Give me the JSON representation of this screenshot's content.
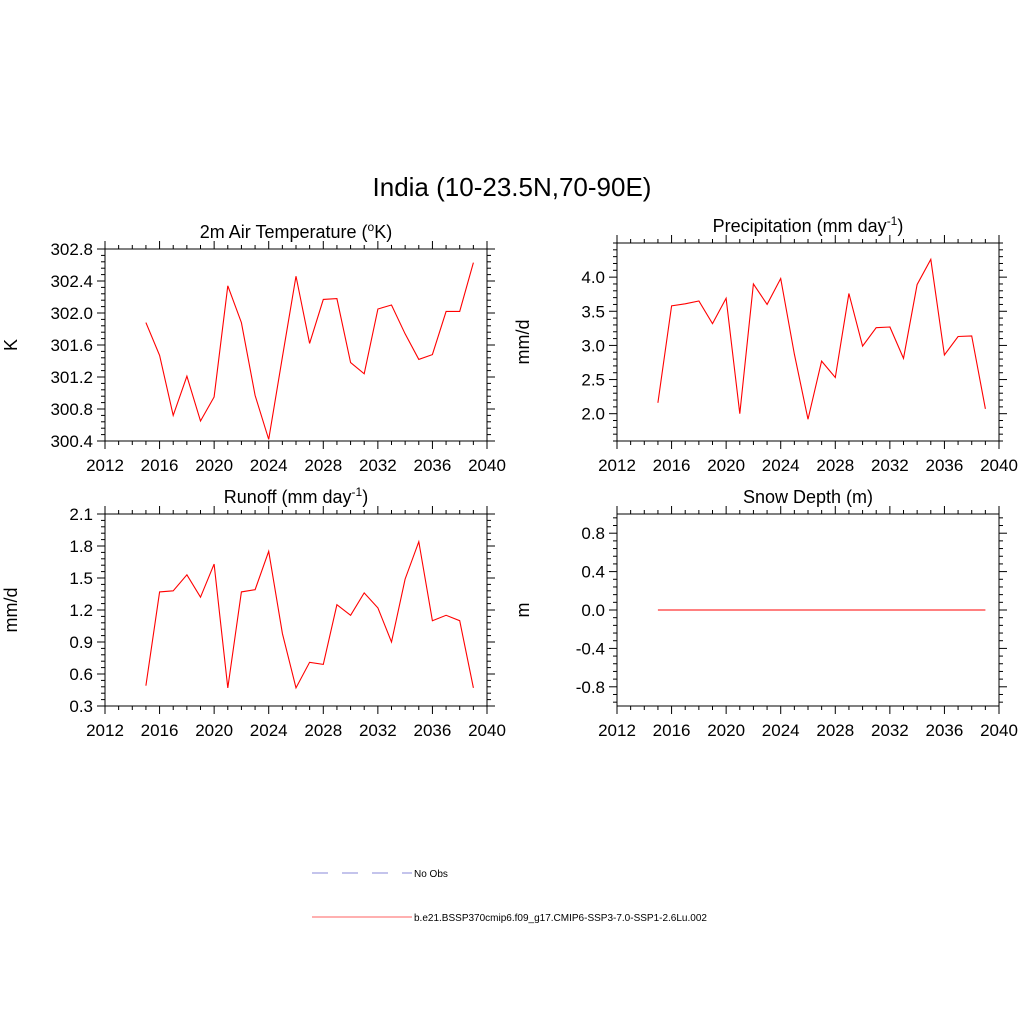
{
  "figure": {
    "title": "India (10-23.5N,70-90E)",
    "line_color": "#ff0000",
    "obs_color": "#a0a0e0"
  },
  "legend": {
    "entries": [
      {
        "label": "No Obs",
        "style": "dashed",
        "color": "#a0a0e0"
      },
      {
        "label": "b.e21.BSSP370cmip6.f09_g17.CMIP6-SSP3-7.0-SSP1-2.6Lu.002",
        "style": "solid",
        "color": "#ff8080"
      }
    ]
  },
  "chart_data": [
    {
      "type": "line",
      "title": "2m Air Temperature (",
      "title_sup": "o",
      "title_tail": "K)",
      "ylabel": "K",
      "xlim": [
        2012,
        2040
      ],
      "ylim": [
        300.4,
        302.8
      ],
      "xticks": [
        2012,
        2016,
        2020,
        2024,
        2028,
        2032,
        2036,
        2040
      ],
      "yticks": [
        "300.4",
        "300.8",
        "301.2",
        "301.6",
        "302.0",
        "302.4",
        "302.8"
      ],
      "x": [
        2015,
        2016,
        2017,
        2018,
        2019,
        2020,
        2021,
        2022,
        2023,
        2024,
        2025,
        2026,
        2027,
        2028,
        2029,
        2030,
        2031,
        2032,
        2033,
        2034,
        2035,
        2036,
        2037,
        2038,
        2039
      ],
      "series": [
        {
          "values": [
            301.88,
            301.47,
            300.72,
            301.21,
            300.65,
            300.95,
            302.34,
            301.88,
            300.97,
            300.42,
            301.45,
            302.46,
            301.62,
            302.17,
            302.18,
            301.38,
            301.24,
            302.05,
            302.1,
            301.74,
            301.42,
            301.48,
            302.02,
            302.02,
            302.63
          ]
        }
      ]
    },
    {
      "type": "line",
      "title": "Precipitation (mm day",
      "title_sup": "-1",
      "title_tail": ")",
      "ylabel": "mm/d",
      "xlim": [
        2012,
        2040
      ],
      "ylim": [
        1.6,
        4.5
      ],
      "xticks": [
        2012,
        2016,
        2020,
        2024,
        2028,
        2032,
        2036,
        2040
      ],
      "yticks": [
        "2.0",
        "2.5",
        "3.0",
        "3.5",
        "4.0"
      ],
      "x": [
        2015,
        2016,
        2017,
        2018,
        2019,
        2020,
        2021,
        2022,
        2023,
        2024,
        2025,
        2026,
        2027,
        2028,
        2029,
        2030,
        2031,
        2032,
        2033,
        2034,
        2035,
        2036,
        2037,
        2038,
        2039
      ],
      "series": [
        {
          "values": [
            2.16,
            3.58,
            3.61,
            3.65,
            3.32,
            3.69,
            2.0,
            3.9,
            3.6,
            3.98,
            2.87,
            1.92,
            2.77,
            2.53,
            3.76,
            2.99,
            3.26,
            3.27,
            2.81,
            3.89,
            4.26,
            2.86,
            3.13,
            3.14,
            2.07
          ]
        }
      ]
    },
    {
      "type": "line",
      "title": "Runoff (mm day",
      "title_sup": "-1",
      "title_tail": ")",
      "ylabel": "mm/d",
      "xlim": [
        2012,
        2040
      ],
      "ylim": [
        0.3,
        2.1
      ],
      "xticks": [
        2012,
        2016,
        2020,
        2024,
        2028,
        2032,
        2036,
        2040
      ],
      "yticks": [
        "0.3",
        "0.6",
        "0.9",
        "1.2",
        "1.5",
        "1.8",
        "2.1"
      ],
      "x": [
        2015,
        2016,
        2017,
        2018,
        2019,
        2020,
        2021,
        2022,
        2023,
        2024,
        2025,
        2026,
        2027,
        2028,
        2029,
        2030,
        2031,
        2032,
        2033,
        2034,
        2035,
        2036,
        2037,
        2038,
        2039
      ],
      "series": [
        {
          "values": [
            0.49,
            1.37,
            1.38,
            1.53,
            1.32,
            1.63,
            0.47,
            1.37,
            1.39,
            1.75,
            0.98,
            0.47,
            0.71,
            0.69,
            1.25,
            1.15,
            1.36,
            1.22,
            0.9,
            1.49,
            1.84,
            1.1,
            1.15,
            1.1,
            0.47
          ]
        }
      ]
    },
    {
      "type": "line",
      "title": "Snow Depth (m)",
      "title_sup": "",
      "title_tail": "",
      "ylabel": "m",
      "xlim": [
        2012,
        2040
      ],
      "ylim": [
        -1.0,
        1.0
      ],
      "xticks": [
        2012,
        2016,
        2020,
        2024,
        2028,
        2032,
        2036,
        2040
      ],
      "yticks": [
        "-0.8",
        "-0.4",
        "0.0",
        "0.4",
        "0.8"
      ],
      "x": [
        2015,
        2016,
        2017,
        2018,
        2019,
        2020,
        2021,
        2022,
        2023,
        2024,
        2025,
        2026,
        2027,
        2028,
        2029,
        2030,
        2031,
        2032,
        2033,
        2034,
        2035,
        2036,
        2037,
        2038,
        2039
      ],
      "series": [
        {
          "values": [
            0,
            0,
            0,
            0,
            0,
            0,
            0,
            0,
            0,
            0,
            0,
            0,
            0,
            0,
            0,
            0,
            0,
            0,
            0,
            0,
            0,
            0,
            0,
            0,
            0
          ]
        }
      ]
    }
  ]
}
